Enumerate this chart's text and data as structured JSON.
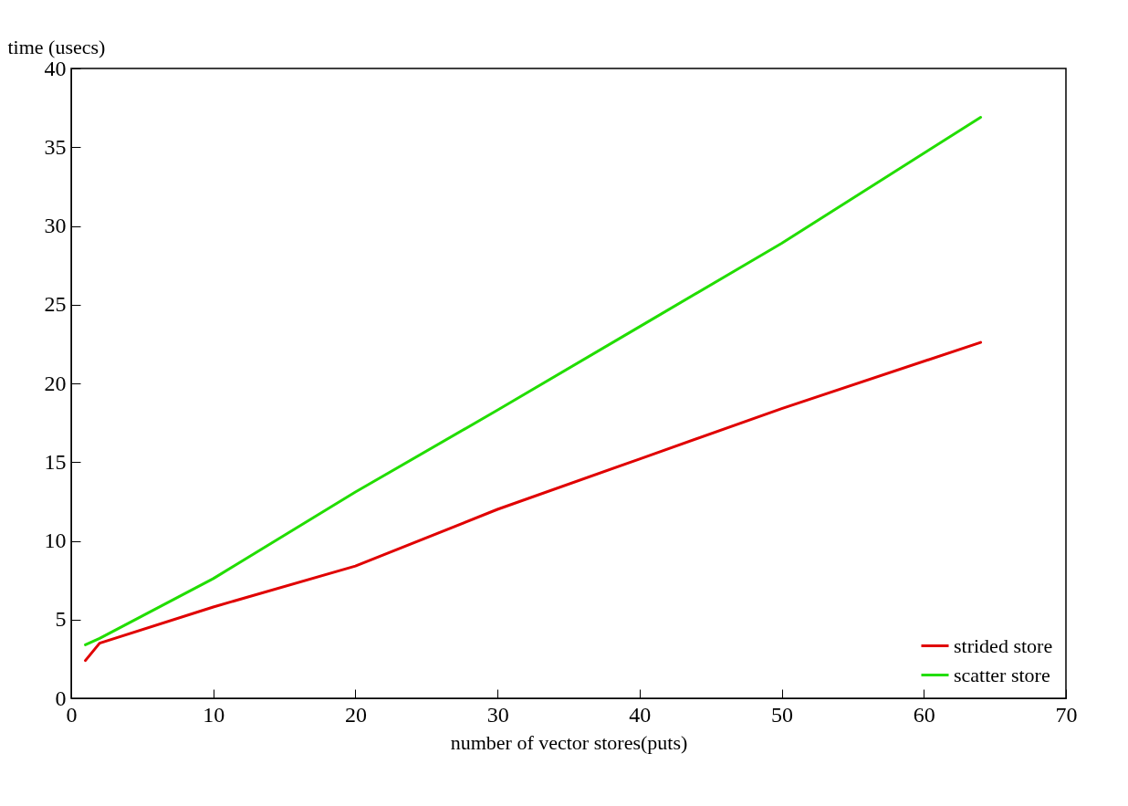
{
  "chart_data": {
    "type": "line",
    "xlabel": "number of vector stores(puts)",
    "ylabel": "time (usecs)",
    "xlim": [
      0,
      70
    ],
    "xticks": [
      0,
      10,
      20,
      30,
      40,
      50,
      60,
      70
    ],
    "ylim": [
      0,
      40
    ],
    "yticks": [
      0,
      5,
      10,
      15,
      20,
      25,
      30,
      35,
      40
    ],
    "x": [
      1,
      2,
      10,
      20,
      30,
      40,
      50,
      64
    ],
    "series": [
      {
        "name": "strided store",
        "color": "#e00000",
        "values": [
          2.4,
          3.5,
          5.8,
          8.4,
          12.0,
          15.2,
          18.4,
          22.6
        ]
      },
      {
        "name": "scatter store",
        "color": "#22dd00",
        "values": [
          3.4,
          3.8,
          7.6,
          13.1,
          18.3,
          23.6,
          28.9,
          36.9
        ]
      }
    ],
    "grid": false,
    "legend": "bottom right",
    "marker": "none",
    "line_style": "solid"
  }
}
